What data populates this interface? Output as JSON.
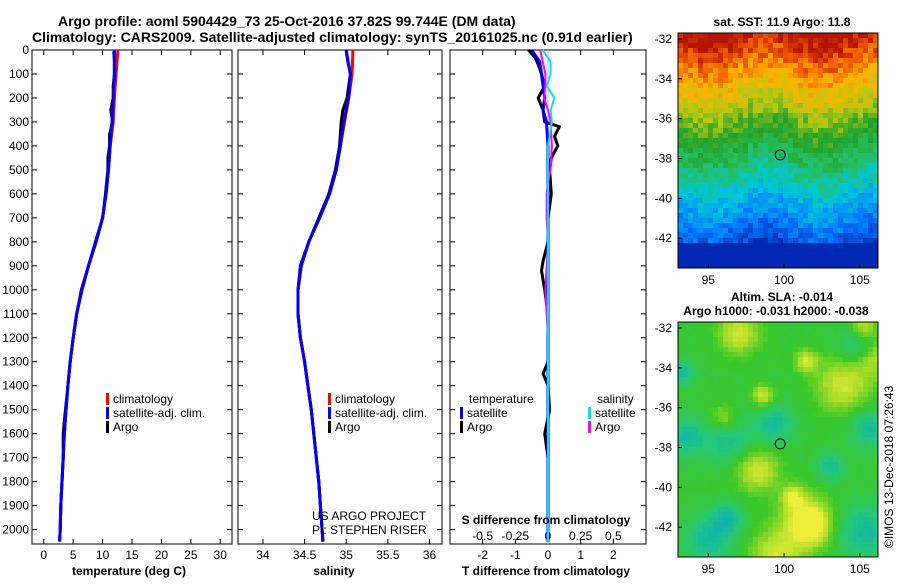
{
  "header": {
    "line1": "Argo profile: aoml 5904429_73 25-Oct-2016 37.82S 99.744E (DM data)",
    "line2": "Climatology: CARS2009. Satellite-adjusted climatology: synTS_20161025.nc (0.91d earlier)"
  },
  "colors": {
    "climatology": "#ff0000",
    "satellite": "#0000ff",
    "argo": "#000000",
    "satellite_salinity": "#00e0ff",
    "argo_salinity": "#ff00ff"
  },
  "depth_ticks": [
    "0",
    "100",
    "200",
    "300",
    "400",
    "500",
    "600",
    "700",
    "800",
    "900",
    "1000",
    "1100",
    "1200",
    "1300",
    "1400",
    "1500",
    "1600",
    "1700",
    "1800",
    "1900",
    "2000"
  ],
  "chart_data": [
    {
      "type": "line",
      "id": "temperature",
      "xlabel": "temperature (deg C)",
      "ylabel": "",
      "xlim": [
        -2,
        32
      ],
      "ylim": [
        2060,
        0
      ],
      "xticks": [
        "0",
        "5",
        "10",
        "15",
        "20",
        "25",
        "30"
      ],
      "legend": [
        "climatology",
        "satellite-adj. clim.",
        "Argo"
      ],
      "series": [
        {
          "name": "climatology",
          "depth": [
            0,
            100,
            200,
            300,
            400,
            500,
            600,
            700,
            800,
            900,
            1000,
            1100,
            1200,
            1300,
            1400,
            1500,
            1600,
            1700,
            1800,
            1900,
            2000,
            2050
          ],
          "values": [
            12.6,
            12.3,
            12.0,
            11.8,
            11.3,
            11.0,
            10.6,
            10.0,
            8.9,
            7.6,
            6.5,
            5.6,
            5.0,
            4.5,
            4.1,
            3.8,
            3.5,
            3.3,
            3.1,
            2.9,
            2.8,
            2.7
          ]
        },
        {
          "name": "satellite-adj. clim.",
          "depth": [
            0,
            100,
            200,
            300,
            400,
            500,
            600,
            700,
            800,
            900,
            1000,
            1100,
            1200,
            1300,
            1400,
            1500,
            1600,
            1700,
            1800,
            1900,
            2000,
            2050
          ],
          "values": [
            12.0,
            12.0,
            11.8,
            11.6,
            11.3,
            11.0,
            10.6,
            10.0,
            8.9,
            7.6,
            6.5,
            5.6,
            5.0,
            4.5,
            4.1,
            3.8,
            3.5,
            3.3,
            3.1,
            2.9,
            2.8,
            2.7
          ]
        },
        {
          "name": "Argo",
          "depth": [
            5,
            50,
            100,
            150,
            200,
            250,
            300,
            350,
            400,
            450,
            500,
            600,
            700,
            800,
            900,
            1000,
            1100,
            1200,
            1300,
            1400,
            1500,
            1600,
            1700,
            1800,
            1900,
            2000,
            2050
          ],
          "values": [
            11.9,
            12.0,
            12.0,
            11.8,
            11.8,
            11.4,
            11.7,
            11.2,
            11.2,
            10.9,
            10.9,
            10.5,
            10.0,
            8.8,
            7.6,
            6.4,
            5.6,
            5.0,
            4.5,
            4.1,
            3.7,
            3.3,
            3.3,
            3.1,
            2.9,
            2.8,
            2.7
          ]
        }
      ]
    },
    {
      "type": "line",
      "id": "salinity",
      "xlabel": "salinity",
      "ylabel": "",
      "xlim": [
        33.7,
        36.15
      ],
      "ylim": [
        2060,
        0
      ],
      "xticks": [
        "34",
        "34.5",
        "35",
        "35.5",
        "36"
      ],
      "legend": [
        "climatology",
        "satellite-adj. clim.",
        "Argo"
      ],
      "credits": [
        "US ARGO PROJECT",
        "PI: STEPHEN RISER"
      ],
      "series": [
        {
          "name": "climatology",
          "depth": [
            0,
            100,
            200,
            300,
            400,
            500,
            600,
            700,
            800,
            900,
            1000,
            1100,
            1200,
            1300,
            1400,
            1500,
            1600,
            1700,
            1800,
            1900,
            2000,
            2050
          ],
          "values": [
            35.08,
            35.07,
            35.03,
            34.98,
            34.93,
            34.88,
            34.8,
            34.68,
            34.55,
            34.46,
            34.42,
            34.42,
            34.45,
            34.5,
            34.54,
            34.58,
            34.61,
            34.64,
            34.67,
            34.69,
            34.71,
            34.72
          ]
        },
        {
          "name": "satellite-adj. clim.",
          "depth": [
            0,
            100,
            200,
            300,
            400,
            500,
            600,
            700,
            800,
            900,
            1000,
            1100,
            1200,
            1300,
            1400,
            1500,
            1600,
            1700,
            1800,
            1900,
            2000,
            2050
          ],
          "values": [
            35.0,
            35.05,
            35.03,
            34.97,
            34.93,
            34.88,
            34.8,
            34.68,
            34.55,
            34.46,
            34.42,
            34.42,
            34.45,
            34.5,
            34.54,
            34.58,
            34.61,
            34.64,
            34.67,
            34.69,
            34.71,
            34.72
          ]
        },
        {
          "name": "Argo",
          "depth": [
            5,
            50,
            100,
            150,
            200,
            250,
            300,
            350,
            400,
            500,
            600,
            700,
            800,
            900,
            1000,
            1100,
            1200,
            1300,
            1400,
            1500,
            1600,
            1700,
            1800,
            1900,
            2000,
            2050
          ],
          "values": [
            35.0,
            35.02,
            35.05,
            35.03,
            35.01,
            34.96,
            34.94,
            34.93,
            34.92,
            34.87,
            34.79,
            34.67,
            34.55,
            34.45,
            34.42,
            34.42,
            34.45,
            34.5,
            34.54,
            34.58,
            34.61,
            34.64,
            34.67,
            34.69,
            34.71,
            34.72
          ]
        }
      ]
    },
    {
      "type": "line",
      "id": "difference",
      "xlabel": "T difference from climatology",
      "xlabel_top": "S difference from climatology",
      "xlim_T": [
        -3,
        3
      ],
      "xticks_T": [
        "-2",
        "-1",
        "0",
        "1",
        "2"
      ],
      "xticks_S": [
        "-0.5",
        "-0.25",
        "0",
        "0.25",
        "0.5"
      ],
      "ylim": [
        2060,
        0
      ],
      "legend_temperature_title": "temperature",
      "legend_salinity_title": "salinity",
      "legend_temperature": [
        "satellite",
        "Argo"
      ],
      "legend_salinity": [
        "satellite",
        "Argo"
      ],
      "series": [
        {
          "name": "T satellite",
          "depth": [
            0,
            50,
            100,
            150,
            200,
            250,
            300,
            400,
            500,
            700,
            900,
            1100,
            1300,
            1500,
            1700,
            1900,
            2050
          ],
          "values": [
            -0.5,
            -0.25,
            -0.2,
            -0.15,
            -0.1,
            -0.15,
            -0.05,
            0,
            0,
            0,
            0,
            0,
            0,
            0,
            0,
            0,
            0
          ]
        },
        {
          "name": "T Argo",
          "depth": [
            0,
            30,
            60,
            100,
            150,
            200,
            250,
            300,
            320,
            360,
            400,
            450,
            500,
            600,
            700,
            800,
            880,
            920,
            1000,
            1100,
            1200,
            1300,
            1350,
            1400,
            1500,
            1600,
            1700,
            1800,
            1900,
            2000,
            2050
          ],
          "values": [
            -0.6,
            -0.4,
            -0.3,
            -0.2,
            -0.1,
            -0.3,
            -0.15,
            -0.1,
            0.35,
            0.2,
            0.3,
            0.1,
            0.05,
            0.1,
            0,
            0,
            -0.15,
            -0.2,
            -0.1,
            0,
            0,
            0,
            -0.15,
            0,
            0.05,
            -0.1,
            0,
            0,
            0,
            0,
            0
          ]
        },
        {
          "name": "S satellite",
          "depth": [
            0,
            50,
            100,
            150,
            200,
            250,
            300,
            400,
            500,
            700,
            900,
            1100,
            1300,
            1500,
            1700,
            1900,
            2050
          ],
          "values": [
            -0.04,
            0.02,
            0.02,
            -0.01,
            0.05,
            0.02,
            0.03,
            0,
            0,
            0,
            0,
            0,
            0,
            0,
            0,
            0,
            0
          ]
        },
        {
          "name": "S Argo",
          "depth": [
            0,
            50,
            100,
            150,
            200,
            250,
            300,
            400,
            500,
            550,
            600,
            700,
            800,
            900,
            1000,
            1100,
            1200,
            1300,
            1500,
            1700,
            1900,
            2050
          ],
          "values": [
            -0.06,
            -0.04,
            -0.02,
            -0.02,
            -0.03,
            0.0,
            0.02,
            0.03,
            0.02,
            0.0,
            -0.01,
            -0.01,
            0,
            -0.01,
            -0.02,
            -0.01,
            0,
            0,
            0,
            0,
            0,
            0
          ]
        }
      ]
    }
  ],
  "maps": {
    "sst": {
      "title": "sat. SST: 11.9 Argo: 11.8",
      "yticks": [
        "-32",
        "-34",
        "-36",
        "-38",
        "-40",
        "-42"
      ],
      "xticks": [
        "95",
        "100",
        "105"
      ],
      "lon_range": [
        93,
        106.2
      ],
      "lat_range": [
        -43.5,
        -31.7
      ],
      "marker": {
        "lon": 99.744,
        "lat": -37.82
      }
    },
    "sla": {
      "title1": "Altim. SLA: -0.014",
      "title2": "Argo h1000: -0.031 h2000: -0.038",
      "yticks": [
        "-32",
        "-34",
        "-36",
        "-38",
        "-40",
        "-42"
      ],
      "xticks": [
        "95",
        "100",
        "105"
      ],
      "lon_range": [
        93,
        106.2
      ],
      "lat_range": [
        -43.5,
        -31.7
      ],
      "marker": {
        "lon": 99.744,
        "lat": -37.82
      }
    }
  },
  "footer_stamp": "©IMOS 13-Dec-2018 07:26:43"
}
